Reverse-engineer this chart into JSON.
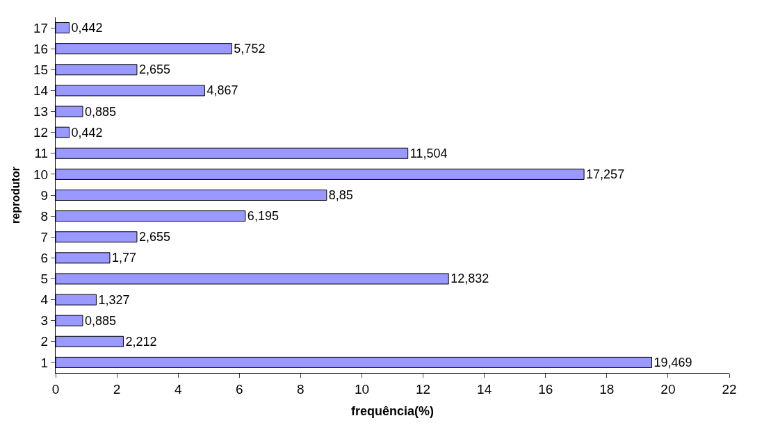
{
  "chart_data": {
    "type": "bar",
    "orientation": "horizontal",
    "xlabel": "frequência(%)",
    "ylabel": "reprodutor",
    "categories": [
      "17",
      "16",
      "15",
      "14",
      "13",
      "12",
      "11",
      "10",
      "9",
      "8",
      "7",
      "6",
      "5",
      "4",
      "3",
      "2",
      "1"
    ],
    "values": [
      0.442,
      5.752,
      2.655,
      4.867,
      0.885,
      0.442,
      11.504,
      17.257,
      8.85,
      6.195,
      2.655,
      1.77,
      12.832,
      1.327,
      0.885,
      2.212,
      19.469
    ],
    "value_labels": [
      "0,442",
      "5,752",
      "2,655",
      "4,867",
      "0,885",
      "0,442",
      "11,504",
      "17,257",
      "8,85",
      "6,195",
      "2,655",
      "1,77",
      "12,832",
      "1,327",
      "0,885",
      "2,212",
      "19,469"
    ],
    "color": "#9999ff",
    "xlim": [
      0,
      22
    ],
    "xticks": [
      0,
      2,
      4,
      6,
      8,
      10,
      12,
      14,
      16,
      18,
      20,
      22
    ],
    "legend": false
  }
}
